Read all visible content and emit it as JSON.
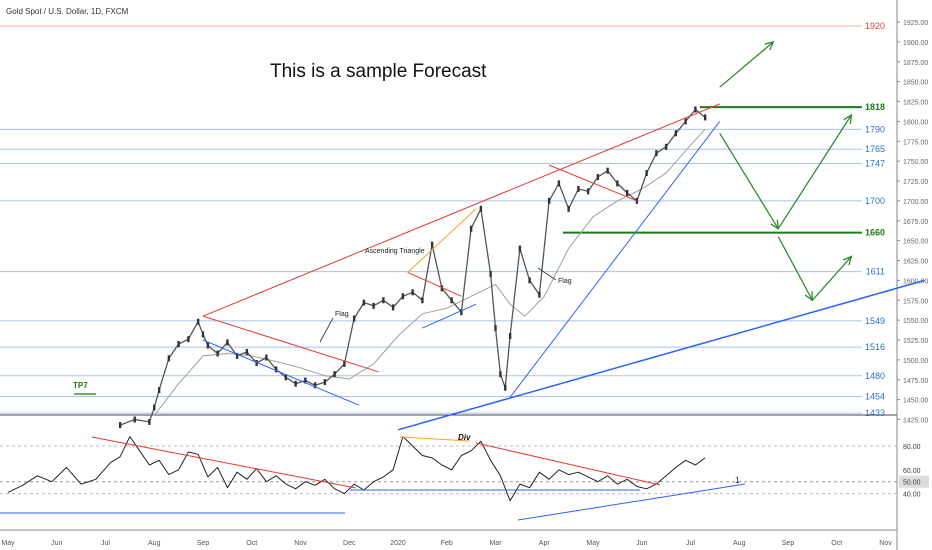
{
  "header": {
    "symbol_title": "Gold Spot / U.S. Dollar, 1D, FXCM"
  },
  "forecast_text": "This is a sample Forecast",
  "annotations": {
    "ascending_triangle": "Ascending Triangle",
    "flag_1": "Flag",
    "flag_2": "Flag",
    "tp_label": "TP7",
    "div_label": "Div",
    "rsi_marker": "1"
  },
  "colors": {
    "resistance": "#e53935",
    "support": "#2962ff",
    "level_green": "#1b7a1b",
    "level_blue_text": "#2e6fcf",
    "triangle_line": "#f5a623",
    "arrow_green": "#2e8b2e",
    "price_line": "#555555",
    "ma_line": "#9e9e9e",
    "rsi_line": "#222222"
  },
  "chart_data": {
    "type": "line",
    "title": "Gold Spot / U.S. Dollar, 1D, FXCM",
    "price_axis": {
      "ylim": [
        1410,
        1930
      ],
      "ticks": [
        "1925.00",
        "1900.00",
        "1875.00",
        "1850.00",
        "1825.00",
        "1800.00",
        "1775.00",
        "1750.00",
        "1725.00",
        "1700.00",
        "1675.00",
        "1650.00",
        "1625.00",
        "1600.00",
        "1575.00",
        "1550.00",
        "1525.00",
        "1500.00",
        "1475.00",
        "1450.00",
        "1425.00"
      ]
    },
    "x_axis": {
      "labels": [
        "May",
        "Jun",
        "Jul",
        "Aug",
        "Sep",
        "Oct",
        "Nov",
        "Dec",
        "2020",
        "Feb",
        "Mar",
        "Apr",
        "May",
        "Jun",
        "Jul",
        "Aug",
        "Sep",
        "Oct",
        "Nov"
      ],
      "positions": [
        0,
        1,
        2,
        3,
        4,
        5,
        6,
        7,
        8,
        9,
        10,
        11,
        12,
        13,
        14,
        15,
        16,
        17,
        18
      ]
    },
    "levels": [
      {
        "value": 1920,
        "label": "1920",
        "style": "red-thin"
      },
      {
        "value": 1818,
        "label": "1818",
        "style": "green-bold"
      },
      {
        "value": 1790,
        "label": "1790",
        "style": "blue"
      },
      {
        "value": 1765,
        "label": "1765",
        "style": "blue"
      },
      {
        "value": 1747,
        "label": "1747",
        "style": "blue"
      },
      {
        "value": 1700,
        "label": "1700",
        "style": "blue"
      },
      {
        "value": 1660,
        "label": "1660",
        "style": "green-bold"
      },
      {
        "value": 1611,
        "label": "1611",
        "style": "blue"
      },
      {
        "value": 1549,
        "label": "1549",
        "style": "blue"
      },
      {
        "value": 1516,
        "label": "1516",
        "style": "blue"
      },
      {
        "value": 1480,
        "label": "1480",
        "style": "blue"
      },
      {
        "value": 1454,
        "label": "1454",
        "style": "blue"
      },
      {
        "value": 1433,
        "label": "1433",
        "style": "blue"
      }
    ],
    "series": [
      {
        "name": "",
        "x": [
          2.3,
          2.6,
          2.9,
          3.0,
          3.1,
          3.3,
          3.5,
          3.7,
          3.9,
          4.0,
          4.1,
          4.3,
          4.5,
          4.7,
          4.9,
          5.1,
          5.3,
          5.5,
          5.7,
          5.9,
          6.1,
          6.3,
          6.5,
          6.7,
          6.9,
          7.1,
          7.3,
          7.5,
          7.7,
          7.9,
          8.1,
          8.3,
          8.5,
          8.7,
          8.9,
          9.1,
          9.3,
          9.5,
          9.7,
          9.9,
          10.0,
          10.1,
          10.2,
          10.3,
          10.5,
          10.7,
          10.9,
          11.1,
          11.3,
          11.5,
          11.7,
          11.9,
          12.1,
          12.3,
          12.5,
          12.7,
          12.9,
          13.1,
          13.3,
          13.5,
          13.7,
          13.9,
          14.1,
          14.3
        ],
        "y": [
          1418,
          1425,
          1422,
          1440,
          1462,
          1502,
          1520,
          1526,
          1548,
          1532,
          1518,
          1508,
          1522,
          1505,
          1510,
          1496,
          1503,
          1488,
          1478,
          1470,
          1474,
          1468,
          1472,
          1482,
          1495,
          1552,
          1572,
          1568,
          1575,
          1566,
          1580,
          1585,
          1575,
          1645,
          1590,
          1575,
          1560,
          1665,
          1690,
          1608,
          1540,
          1482,
          1465,
          1530,
          1640,
          1600,
          1582,
          1700,
          1722,
          1690,
          1715,
          1712,
          1730,
          1738,
          1722,
          1710,
          1700,
          1735,
          1760,
          1768,
          1785,
          1800,
          1815,
          1805
        ],
        "role": "price"
      },
      {
        "name": "",
        "x": [
          3.0,
          3.5,
          4.0,
          4.5,
          5.0,
          5.5,
          6.0,
          6.5,
          7.0,
          7.5,
          8.0,
          8.5,
          9.0,
          9.5,
          10.0,
          10.3,
          10.6,
          11.0,
          11.5,
          12.0,
          12.5,
          13.0,
          13.5,
          14.0,
          14.3
        ],
        "y": [
          1430,
          1470,
          1505,
          1508,
          1505,
          1498,
          1490,
          1480,
          1476,
          1495,
          1530,
          1558,
          1565,
          1580,
          1595,
          1570,
          1555,
          1580,
          1640,
          1680,
          1700,
          1715,
          1735,
          1770,
          1790
        ],
        "role": "moving-average"
      }
    ],
    "trendlines": [
      {
        "from": [
          4.0,
          1555
        ],
        "to": [
          14.6,
          1822
        ],
        "color": "resistance"
      },
      {
        "from": [
          4.0,
          1555
        ],
        "to": [
          7.6,
          1485
        ],
        "color": "resistance"
      },
      {
        "from": [
          8.2,
          1610
        ],
        "to": [
          9.3,
          1580
        ],
        "color": "resistance"
      },
      {
        "from": [
          11.1,
          1745
        ],
        "to": [
          12.9,
          1700
        ],
        "color": "resistance"
      },
      {
        "from": [
          4.0,
          1525
        ],
        "to": [
          7.2,
          1443
        ],
        "color": "support"
      },
      {
        "from": [
          8.5,
          1540
        ],
        "to": [
          9.6,
          1570
        ],
        "color": "support"
      },
      {
        "from": [
          10.3,
          1453
        ],
        "to": [
          14.6,
          1800
        ],
        "color": "support"
      },
      {
        "from": [
          8.0,
          1412
        ],
        "to": [
          18.8,
          1600
        ],
        "color": "support"
      },
      {
        "from": [
          8.2,
          1610
        ],
        "to": [
          9.6,
          1690
        ],
        "color": "triangle_line"
      }
    ],
    "projection_arrows": [
      {
        "from": [
          14.6,
          1843
        ],
        "to": [
          15.7,
          1900
        ]
      },
      {
        "from": [
          14.6,
          1785
        ],
        "to": [
          15.8,
          1665
        ]
      },
      {
        "from": [
          15.8,
          1665
        ],
        "to": [
          17.3,
          1808
        ]
      },
      {
        "from": [
          15.8,
          1655
        ],
        "to": [
          16.5,
          1575
        ]
      },
      {
        "from": [
          16.5,
          1575
        ],
        "to": [
          17.3,
          1630
        ]
      }
    ],
    "rsi": {
      "ylim": [
        30,
        92
      ],
      "ticks": [
        "80.00",
        "60.00",
        "50.00",
        "40.00"
      ],
      "highlight": "50.00",
      "x": [
        0.0,
        0.3,
        0.6,
        0.9,
        1.2,
        1.5,
        1.8,
        2.1,
        2.3,
        2.5,
        2.7,
        2.9,
        3.1,
        3.3,
        3.5,
        3.7,
        3.9,
        4.1,
        4.3,
        4.5,
        4.7,
        4.9,
        5.1,
        5.3,
        5.5,
        5.7,
        5.9,
        6.1,
        6.3,
        6.5,
        6.7,
        6.9,
        7.1,
        7.3,
        7.5,
        7.7,
        7.9,
        8.1,
        8.3,
        8.5,
        8.7,
        8.9,
        9.1,
        9.3,
        9.5,
        9.7,
        9.9,
        10.1,
        10.3,
        10.5,
        10.7,
        10.9,
        11.1,
        11.3,
        11.5,
        11.7,
        11.9,
        12.1,
        12.3,
        12.5,
        12.7,
        12.9,
        13.1,
        13.3,
        13.5,
        13.7,
        13.9,
        14.1,
        14.3
      ],
      "values": [
        41,
        47,
        55,
        50,
        62,
        48,
        52,
        66,
        71,
        88,
        76,
        64,
        68,
        56,
        60,
        75,
        73,
        54,
        62,
        45,
        58,
        52,
        61,
        50,
        55,
        48,
        44,
        50,
        47,
        52,
        44,
        40,
        48,
        43,
        50,
        54,
        60,
        88,
        80,
        72,
        70,
        64,
        60,
        72,
        76,
        84,
        68,
        55,
        34,
        48,
        45,
        58,
        52,
        60,
        56,
        58,
        54,
        50,
        55,
        48,
        52,
        46,
        44,
        48,
        55,
        62,
        68,
        64,
        70
      ]
    }
  }
}
